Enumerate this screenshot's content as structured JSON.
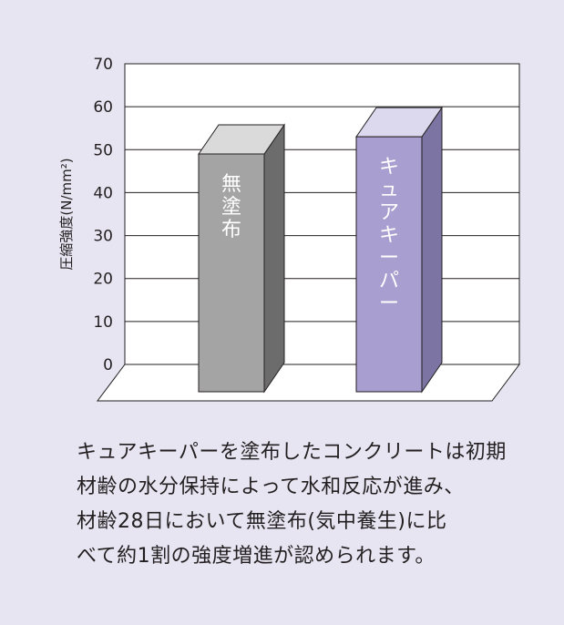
{
  "chart_data": {
    "type": "bar",
    "ylabel": "圧縮強度(N/mm²)",
    "ylim": [
      0,
      70
    ],
    "yticks": [
      "0",
      "10",
      "20",
      "30",
      "40",
      "50",
      "60",
      "70"
    ],
    "grid": true,
    "categories": [
      "無塗布",
      "キュアキーパー"
    ],
    "values": [
      49,
      53
    ],
    "colors": {
      "bar1_front": "#a4a4a4",
      "bar1_side": "#6c6c6c",
      "bar1_top": "#dadada",
      "bar2_front": "#a89ecf",
      "bar2_side": "#7c74a2",
      "bar2_top": "#dcd8ee",
      "background": "#e7e5f2",
      "plot_area": "#ffffff"
    }
  },
  "caption": {
    "lines": [
      "キュアキーパーを塗布したコンクリートは初期",
      "材齢の水分保持によって水和反応が進み、",
      "材齢28日において無塗布(気中養生)に比",
      "べて約1割の強度増進が認められます。"
    ]
  }
}
